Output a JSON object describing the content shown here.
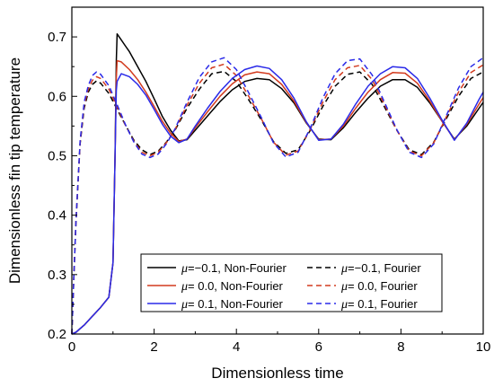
{
  "chart_data": {
    "type": "line",
    "xlabel": "Dimensionless time",
    "ylabel": "Dimensionless fin tip temperature",
    "xlim": [
      0,
      10
    ],
    "ylim": [
      0.2,
      0.75
    ],
    "x_ticks": [
      0,
      2,
      4,
      6,
      8,
      10
    ],
    "x_tick_labels": [
      "0",
      "2",
      "4",
      "6",
      "8",
      "10"
    ],
    "y_ticks": [
      0.2,
      0.3,
      0.4,
      0.5,
      0.6,
      0.7
    ],
    "y_tick_labels": [
      "0.2",
      "0.3",
      "0.4",
      "0.5",
      "0.6",
      "0.7"
    ],
    "grid": false,
    "legend_position": "bottom-right",
    "series": [
      {
        "label": "=−0.1, Non-Fourier",
        "color": "#000000",
        "style": "solid",
        "x": [
          0,
          0.1,
          0.3,
          0.5,
          0.7,
          0.9,
          1.0,
          1.05,
          1.08,
          1.1,
          1.2,
          1.3,
          1.4,
          1.6,
          1.8,
          2.0,
          2.2,
          2.4,
          2.6,
          2.8,
          3.0,
          3.3,
          3.6,
          3.9,
          4.2,
          4.5,
          4.8,
          5.1,
          5.4,
          5.7,
          6.0,
          6.3,
          6.6,
          6.9,
          7.2,
          7.5,
          7.8,
          8.1,
          8.4,
          8.7,
          9.0,
          9.3,
          9.6,
          9.9,
          10.0
        ],
        "y": [
          0.2,
          0.203,
          0.215,
          0.23,
          0.245,
          0.262,
          0.32,
          0.5,
          0.66,
          0.705,
          0.695,
          0.685,
          0.675,
          0.65,
          0.625,
          0.596,
          0.566,
          0.543,
          0.525,
          0.527,
          0.543,
          0.567,
          0.591,
          0.611,
          0.625,
          0.63,
          0.628,
          0.613,
          0.589,
          0.555,
          0.528,
          0.527,
          0.547,
          0.573,
          0.597,
          0.617,
          0.628,
          0.628,
          0.615,
          0.589,
          0.558,
          0.528,
          0.55,
          0.58,
          0.59
        ]
      },
      {
        "label": "=−0.1, Fourier",
        "color": "#000000",
        "style": "dashed",
        "x": [
          0,
          0.05,
          0.1,
          0.2,
          0.3,
          0.4,
          0.5,
          0.6,
          0.7,
          0.9,
          1.1,
          1.3,
          1.5,
          1.7,
          1.9,
          2.1,
          2.3,
          2.5,
          2.8,
          3.1,
          3.4,
          3.7,
          4.0,
          4.3,
          4.6,
          4.9,
          5.2,
          5.5,
          5.8,
          6.1,
          6.4,
          6.7,
          7.0,
          7.3,
          7.6,
          7.9,
          8.2,
          8.5,
          8.8,
          9.1,
          9.4,
          9.7,
          10.0
        ],
        "y": [
          0.2,
          0.3,
          0.39,
          0.52,
          0.58,
          0.607,
          0.62,
          0.626,
          0.622,
          0.605,
          0.578,
          0.552,
          0.527,
          0.51,
          0.502,
          0.508,
          0.523,
          0.542,
          0.58,
          0.612,
          0.638,
          0.642,
          0.625,
          0.594,
          0.561,
          0.524,
          0.504,
          0.51,
          0.543,
          0.583,
          0.617,
          0.637,
          0.641,
          0.62,
          0.582,
          0.543,
          0.51,
          0.502,
          0.523,
          0.562,
          0.6,
          0.63,
          0.641
        ]
      },
      {
        "label": "= 0.0, Non-Fourier",
        "color": "#d23a1e",
        "style": "solid",
        "x": [
          0,
          0.1,
          0.3,
          0.5,
          0.7,
          0.9,
          1.0,
          1.05,
          1.08,
          1.1,
          1.2,
          1.4,
          1.6,
          1.8,
          2.0,
          2.2,
          2.4,
          2.6,
          2.8,
          3.0,
          3.3,
          3.6,
          3.9,
          4.2,
          4.5,
          4.8,
          5.1,
          5.4,
          5.7,
          6.0,
          6.3,
          6.6,
          6.9,
          7.2,
          7.5,
          7.8,
          8.1,
          8.4,
          8.7,
          9.0,
          9.3,
          9.6,
          9.9,
          10.0
        ],
        "y": [
          0.2,
          0.203,
          0.215,
          0.23,
          0.245,
          0.262,
          0.32,
          0.5,
          0.63,
          0.66,
          0.658,
          0.645,
          0.628,
          0.607,
          0.583,
          0.558,
          0.538,
          0.524,
          0.528,
          0.547,
          0.574,
          0.6,
          0.621,
          0.636,
          0.641,
          0.638,
          0.62,
          0.592,
          0.556,
          0.527,
          0.528,
          0.55,
          0.58,
          0.607,
          0.628,
          0.64,
          0.639,
          0.622,
          0.592,
          0.558,
          0.527,
          0.553,
          0.587,
          0.598
        ]
      },
      {
        "label": "= 0.0, Fourier",
        "color": "#d23a1e",
        "style": "dashed",
        "x": [
          0,
          0.05,
          0.1,
          0.2,
          0.3,
          0.4,
          0.5,
          0.6,
          0.7,
          0.9,
          1.1,
          1.3,
          1.5,
          1.7,
          1.9,
          2.1,
          2.3,
          2.5,
          2.8,
          3.1,
          3.4,
          3.7,
          4.0,
          4.3,
          4.6,
          4.9,
          5.2,
          5.5,
          5.8,
          6.1,
          6.4,
          6.7,
          7.0,
          7.3,
          7.6,
          7.9,
          8.2,
          8.5,
          8.8,
          9.1,
          9.4,
          9.7,
          10.0
        ],
        "y": [
          0.2,
          0.3,
          0.39,
          0.522,
          0.585,
          0.612,
          0.627,
          0.633,
          0.63,
          0.612,
          0.582,
          0.552,
          0.525,
          0.506,
          0.5,
          0.506,
          0.522,
          0.543,
          0.585,
          0.622,
          0.648,
          0.654,
          0.635,
          0.6,
          0.563,
          0.523,
          0.501,
          0.508,
          0.545,
          0.59,
          0.628,
          0.648,
          0.652,
          0.628,
          0.586,
          0.543,
          0.508,
          0.5,
          0.522,
          0.565,
          0.607,
          0.64,
          0.653
        ]
      },
      {
        "label": "= 0.1, Non-Fourier",
        "color": "#2a2ae8",
        "style": "solid",
        "x": [
          0,
          0.1,
          0.3,
          0.5,
          0.7,
          0.9,
          1.0,
          1.05,
          1.08,
          1.1,
          1.2,
          1.4,
          1.6,
          1.8,
          2.0,
          2.2,
          2.4,
          2.6,
          2.8,
          3.0,
          3.3,
          3.6,
          3.9,
          4.2,
          4.5,
          4.8,
          5.1,
          5.4,
          5.7,
          6.0,
          6.3,
          6.6,
          6.9,
          7.2,
          7.5,
          7.8,
          8.1,
          8.4,
          8.7,
          9.0,
          9.3,
          9.6,
          9.9,
          10.0
        ],
        "y": [
          0.2,
          0.203,
          0.215,
          0.23,
          0.245,
          0.262,
          0.32,
          0.5,
          0.61,
          0.625,
          0.638,
          0.633,
          0.62,
          0.602,
          0.578,
          0.553,
          0.533,
          0.522,
          0.528,
          0.55,
          0.58,
          0.608,
          0.63,
          0.645,
          0.651,
          0.647,
          0.628,
          0.597,
          0.557,
          0.526,
          0.528,
          0.553,
          0.587,
          0.617,
          0.638,
          0.65,
          0.648,
          0.63,
          0.597,
          0.56,
          0.526,
          0.555,
          0.595,
          0.607
        ]
      },
      {
        "label": "= 0.1, Fourier",
        "color": "#2a2ae8",
        "style": "dashed",
        "x": [
          0,
          0.05,
          0.1,
          0.2,
          0.3,
          0.4,
          0.5,
          0.6,
          0.7,
          0.9,
          1.1,
          1.3,
          1.5,
          1.7,
          1.9,
          2.1,
          2.3,
          2.5,
          2.8,
          3.1,
          3.4,
          3.7,
          4.0,
          4.3,
          4.6,
          4.9,
          5.2,
          5.5,
          5.8,
          6.1,
          6.4,
          6.7,
          7.0,
          7.3,
          7.6,
          7.9,
          8.2,
          8.5,
          8.8,
          9.1,
          9.4,
          9.7,
          10.0
        ],
        "y": [
          0.2,
          0.3,
          0.39,
          0.525,
          0.59,
          0.618,
          0.635,
          0.641,
          0.637,
          0.618,
          0.586,
          0.553,
          0.524,
          0.503,
          0.497,
          0.503,
          0.52,
          0.544,
          0.59,
          0.632,
          0.658,
          0.665,
          0.645,
          0.606,
          0.565,
          0.522,
          0.498,
          0.506,
          0.547,
          0.597,
          0.638,
          0.66,
          0.663,
          0.636,
          0.59,
          0.544,
          0.506,
          0.497,
          0.52,
          0.567,
          0.614,
          0.65,
          0.665
        ]
      }
    ]
  },
  "legend": {
    "symbol": "μ",
    "rows": [
      {
        "left": "=−0.1, Non-Fourier",
        "right": "=−0.1, Fourier",
        "color": "#000000"
      },
      {
        "left": "= 0.0, Non-Fourier",
        "right": "= 0.0, Fourier",
        "color": "#d23a1e"
      },
      {
        "left": "= 0.1, Non-Fourier",
        "right": "= 0.1, Fourier",
        "color": "#2a2ae8"
      }
    ]
  }
}
